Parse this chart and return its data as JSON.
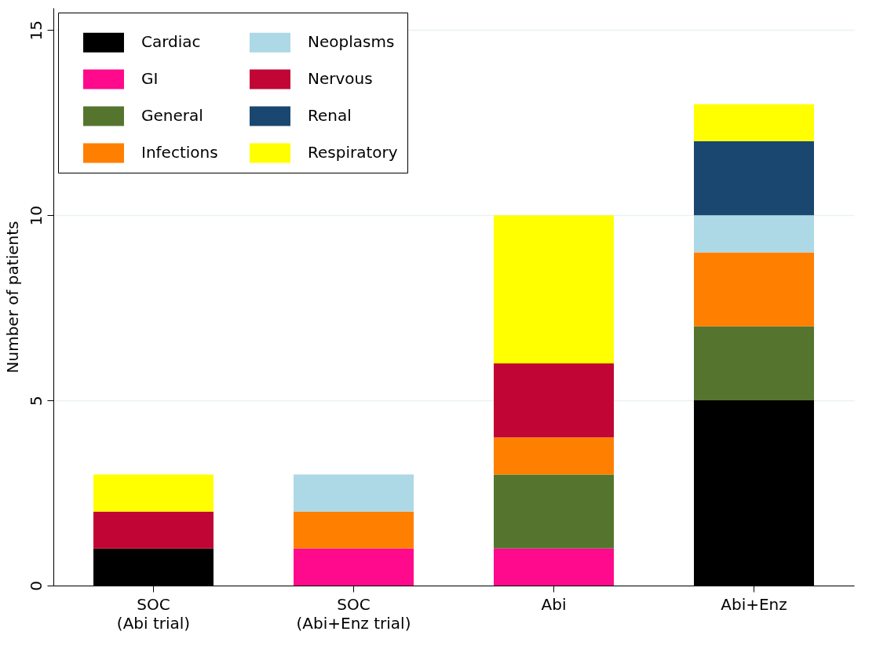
{
  "chart_data": {
    "type": "bar",
    "stacked": true,
    "ylabel": "Number of patients",
    "categories": [
      "SOC\n(Abi trial)",
      "SOC\n(Abi+Enz trial)",
      "Abi",
      "Abi+Enz"
    ],
    "ylim": [
      0,
      15.6
    ],
    "yticks": [
      0,
      5,
      10,
      15
    ],
    "grid": "y",
    "legend": "top left",
    "series": [
      {
        "name": "Cardiac",
        "color": "#000000",
        "values": [
          1,
          null,
          null,
          5
        ]
      },
      {
        "name": "GI",
        "color": "#ff0a8c",
        "values": [
          null,
          1,
          1,
          null
        ]
      },
      {
        "name": "General",
        "color": "#55752f",
        "values": [
          null,
          null,
          2,
          2
        ]
      },
      {
        "name": "Infections",
        "color": "#ff7f00",
        "values": [
          null,
          1,
          1,
          2
        ]
      },
      {
        "name": "Neoplasms",
        "color": "#add8e6",
        "values": [
          null,
          1,
          null,
          1
        ]
      },
      {
        "name": "Nervous",
        "color": "#c10534",
        "values": [
          1,
          null,
          2,
          null
        ]
      },
      {
        "name": "Renal",
        "color": "#1a476f",
        "values": [
          null,
          null,
          null,
          2
        ]
      },
      {
        "name": "Respiratory",
        "color": "#ffff00",
        "values": [
          1,
          null,
          4,
          1
        ]
      }
    ]
  }
}
